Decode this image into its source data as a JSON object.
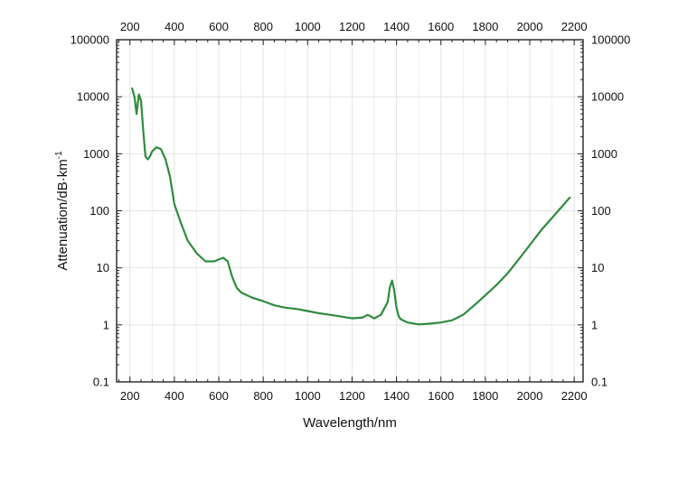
{
  "chart_data": {
    "type": "line",
    "title": "",
    "xlabel": "Wavelength/nm",
    "ylabel": "Attenuation/dB·km",
    "ylabel_superscript": "-1",
    "xlim": [
      140,
      2240
    ],
    "ylim": [
      0.1,
      100000
    ],
    "yscale": "log",
    "x_ticks": [
      200,
      400,
      600,
      800,
      1000,
      1200,
      1400,
      1600,
      1800,
      2000,
      2200
    ],
    "y_ticks": [
      0.1,
      1,
      10,
      100,
      1000,
      10000,
      100000
    ],
    "y_tick_labels": [
      "0.1",
      "1",
      "10",
      "100",
      "1000",
      "10000",
      "100000"
    ],
    "x_axis_top_mirror": true,
    "y_axis_right_mirror": true,
    "grid": true,
    "line_color": "#2e8b3e",
    "series": [
      {
        "name": "",
        "x": [
          210,
          220,
          230,
          240,
          250,
          260,
          270,
          280,
          290,
          300,
          320,
          340,
          360,
          380,
          400,
          430,
          460,
          500,
          540,
          580,
          600,
          620,
          640,
          660,
          680,
          700,
          750,
          800,
          850,
          900,
          950,
          1000,
          1050,
          1100,
          1150,
          1200,
          1250,
          1270,
          1300,
          1330,
          1360,
          1370,
          1380,
          1390,
          1400,
          1410,
          1420,
          1450,
          1500,
          1550,
          1600,
          1650,
          1700,
          1750,
          1800,
          1850,
          1900,
          1950,
          2000,
          2050,
          2100,
          2150,
          2180
        ],
        "y": [
          14000,
          10000,
          5000,
          11000,
          8500,
          2500,
          900,
          800,
          900,
          1100,
          1300,
          1200,
          800,
          400,
          130,
          60,
          30,
          18,
          13,
          13,
          14,
          15,
          13,
          7,
          4.5,
          3.7,
          3,
          2.6,
          2.2,
          2,
          1.9,
          1.75,
          1.6,
          1.5,
          1.4,
          1.3,
          1.35,
          1.5,
          1.3,
          1.5,
          2.5,
          4.5,
          6,
          4,
          2,
          1.4,
          1.25,
          1.1,
          1.02,
          1.05,
          1.1,
          1.2,
          1.5,
          2.2,
          3.3,
          5,
          8,
          14,
          25,
          45,
          75,
          125,
          170
        ]
      }
    ]
  }
}
